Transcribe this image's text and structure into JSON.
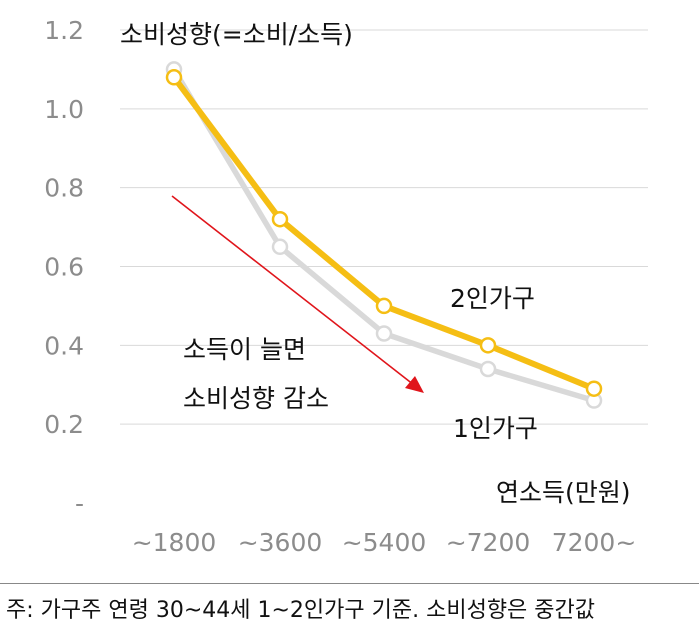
{
  "chart_data": {
    "type": "line",
    "title": "소비성향(=소비/소득)",
    "xlabel": "연소득(만원)",
    "ylabel": "",
    "categories": [
      "~1800",
      "~3600",
      "~5400",
      "~7200",
      "7200~"
    ],
    "yticks": [
      "-",
      "0.2",
      "0.4",
      "0.6",
      "0.8",
      "1.0",
      "1.2"
    ],
    "ylim": [
      0,
      1.2
    ],
    "grid": true,
    "series": [
      {
        "name": "2인가구",
        "values": [
          1.08,
          0.72,
          0.5,
          0.4,
          0.29
        ],
        "color": "#F5BE14"
      },
      {
        "name": "1인가구",
        "values": [
          1.1,
          0.65,
          0.43,
          0.34,
          0.26
        ],
        "color": "#D9D9D9"
      }
    ],
    "annotation": {
      "line1": "소득이 늘면",
      "line2": "소비성향 감소",
      "arrow_color": "#E0151B"
    }
  },
  "footnote": "주: 가구주 연령 30~44세 1~2인가구 기준. 소비성향은 중간값"
}
